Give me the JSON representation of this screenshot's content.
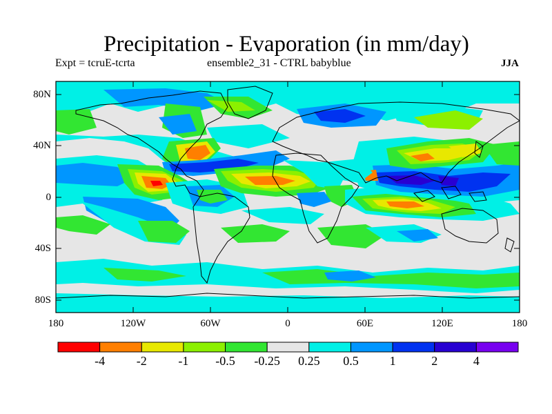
{
  "title": "Precipitation - Evaporation (in mm/day)",
  "subtitle": {
    "left": "Expt = tcruE-tcrta",
    "center": "ensemble2_31 - CTRL babyblue",
    "right": "JJA"
  },
  "y_ticks": [
    "80N",
    "40N",
    "0",
    "40S",
    "80S"
  ],
  "x_ticks": [
    "180",
    "120W",
    "60W",
    "0",
    "60E",
    "120E",
    "180"
  ],
  "colorbar": {
    "colors": [
      "#ff0000",
      "#ff7f00",
      "#e8e800",
      "#8cf000",
      "#32e632",
      "#e6e6e6",
      "#00f0e6",
      "#0096ff",
      "#0032f0",
      "#2800d2",
      "#7800f0"
    ],
    "labels": [
      "-4",
      "-2",
      "-1",
      "-0.5",
      "-0.25",
      "0.25",
      "0.5",
      "1",
      "2",
      "4"
    ]
  },
  "chart_data": {
    "type": "filled-contour map",
    "variable": "Precipitation - Evaporation",
    "units": "mm/day",
    "season": "JJA",
    "x_range_deg_lon": [
      -180,
      180
    ],
    "y_range_deg_lat": [
      -90,
      90
    ],
    "levels": [
      -4,
      -2,
      -1,
      -0.5,
      -0.25,
      0.25,
      0.5,
      1,
      2,
      4
    ]
  }
}
